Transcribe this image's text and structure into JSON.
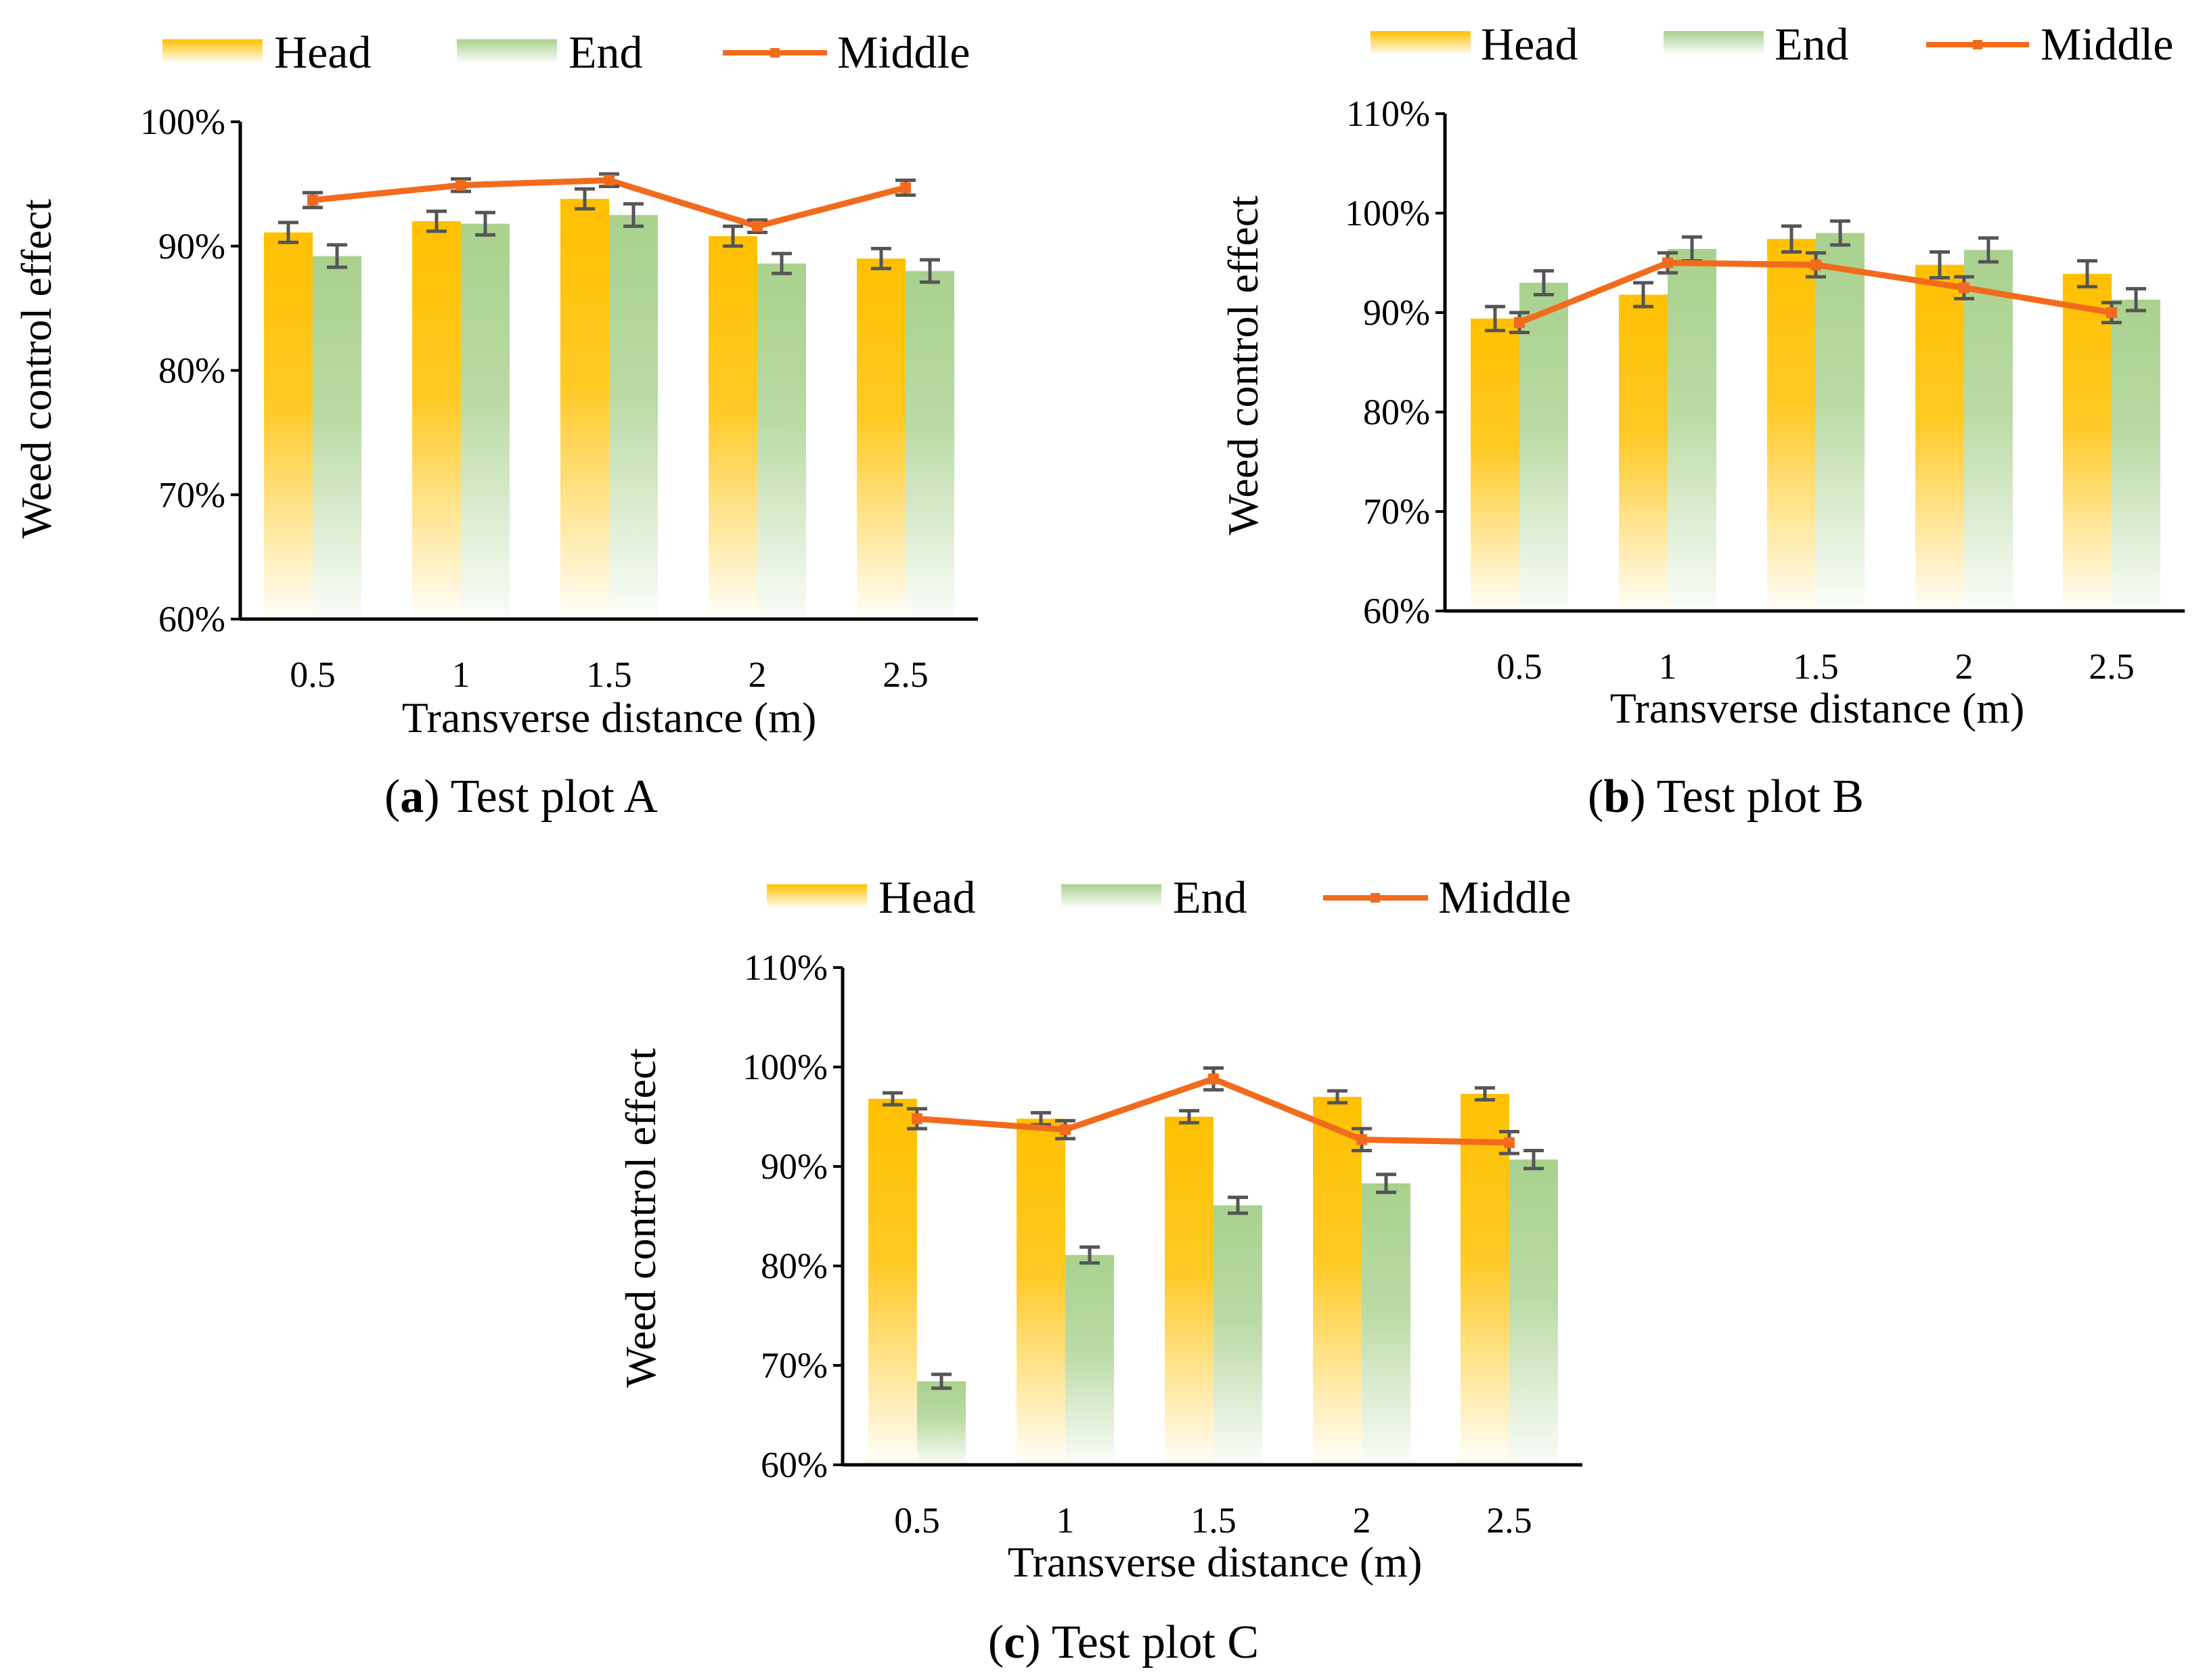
{
  "legend_labels": {
    "head": "Head",
    "end": "End",
    "middle": "Middle"
  },
  "colors": {
    "head": "#FFC000",
    "end": "#A9D18E",
    "middle": "#F26B1D",
    "axis": "#000000",
    "error_bar": "#555555"
  },
  "chart_data": [
    {
      "type": "bar+line",
      "caption_letter": "a",
      "caption_rest": ") Test plot A",
      "xlabel": "Transverse distance (m)",
      "ylabel": "Weed control effect",
      "categories": [
        "0.5",
        "1",
        "1.5",
        "2",
        "2.5"
      ],
      "ylim": [
        0.6,
        1.0
      ],
      "yticks": [
        0.6,
        0.7,
        0.8,
        0.9,
        1.0
      ],
      "ytick_labels": [
        "60%",
        "70%",
        "80%",
        "90%",
        "100%"
      ],
      "series": [
        {
          "name": "Head",
          "kind": "bar",
          "values": [
            0.911,
            0.92,
            0.938,
            0.908,
            0.89
          ],
          "errors": [
            0.008,
            0.008,
            0.008,
            0.008,
            0.008
          ]
        },
        {
          "name": "End",
          "kind": "bar",
          "values": [
            0.892,
            0.918,
            0.925,
            0.886,
            0.88
          ],
          "errors": [
            0.009,
            0.009,
            0.009,
            0.008,
            0.009
          ]
        },
        {
          "name": "Middle",
          "kind": "line",
          "values": [
            0.937,
            0.949,
            0.953,
            0.916,
            0.947
          ],
          "errors": [
            0.006,
            0.005,
            0.005,
            0.005,
            0.006
          ]
        }
      ]
    },
    {
      "type": "bar+line",
      "caption_letter": "b",
      "caption_rest": ") Test plot B",
      "xlabel": "Transverse distance (m)",
      "ylabel": "Weed control effect",
      "categories": [
        "0.5",
        "1",
        "1.5",
        "2",
        "2.5"
      ],
      "ylim": [
        0.6,
        1.1
      ],
      "yticks": [
        0.6,
        0.7,
        0.8,
        0.9,
        1.0,
        1.1
      ],
      "ytick_labels": [
        "60%",
        "70%",
        "80%",
        "90%",
        "100%",
        "110%"
      ],
      "series": [
        {
          "name": "Head",
          "kind": "bar",
          "values": [
            0.894,
            0.918,
            0.974,
            0.948,
            0.939
          ],
          "errors": [
            0.012,
            0.012,
            0.013,
            0.013,
            0.013
          ]
        },
        {
          "name": "End",
          "kind": "bar",
          "values": [
            0.93,
            0.964,
            0.98,
            0.963,
            0.913
          ],
          "errors": [
            0.012,
            0.012,
            0.012,
            0.012,
            0.011
          ]
        },
        {
          "name": "Middle",
          "kind": "line",
          "values": [
            0.89,
            0.95,
            0.948,
            0.925,
            0.9
          ],
          "errors": [
            0.01,
            0.01,
            0.012,
            0.011,
            0.01
          ]
        }
      ]
    },
    {
      "type": "bar+line",
      "caption_letter": "c",
      "caption_rest": ") Test plot C",
      "xlabel": "Transverse distance (m)",
      "ylabel": "Weed control effect",
      "categories": [
        "0.5",
        "1",
        "1.5",
        "2",
        "2.5"
      ],
      "ylim": [
        0.6,
        1.1
      ],
      "yticks": [
        0.6,
        0.7,
        0.8,
        0.9,
        1.0,
        1.1
      ],
      "ytick_labels": [
        "60%",
        "70%",
        "80%",
        "90%",
        "100%",
        "110%"
      ],
      "series": [
        {
          "name": "Head",
          "kind": "bar",
          "values": [
            0.968,
            0.948,
            0.95,
            0.97,
            0.973
          ],
          "errors": [
            0.006,
            0.006,
            0.006,
            0.006,
            0.006
          ]
        },
        {
          "name": "End",
          "kind": "bar",
          "values": [
            0.684,
            0.811,
            0.861,
            0.883,
            0.907
          ],
          "errors": [
            0.007,
            0.008,
            0.008,
            0.009,
            0.009
          ]
        },
        {
          "name": "Middle",
          "kind": "line",
          "values": [
            0.948,
            0.937,
            0.988,
            0.927,
            0.924
          ],
          "errors": [
            0.01,
            0.009,
            0.011,
            0.011,
            0.011
          ]
        }
      ]
    }
  ]
}
